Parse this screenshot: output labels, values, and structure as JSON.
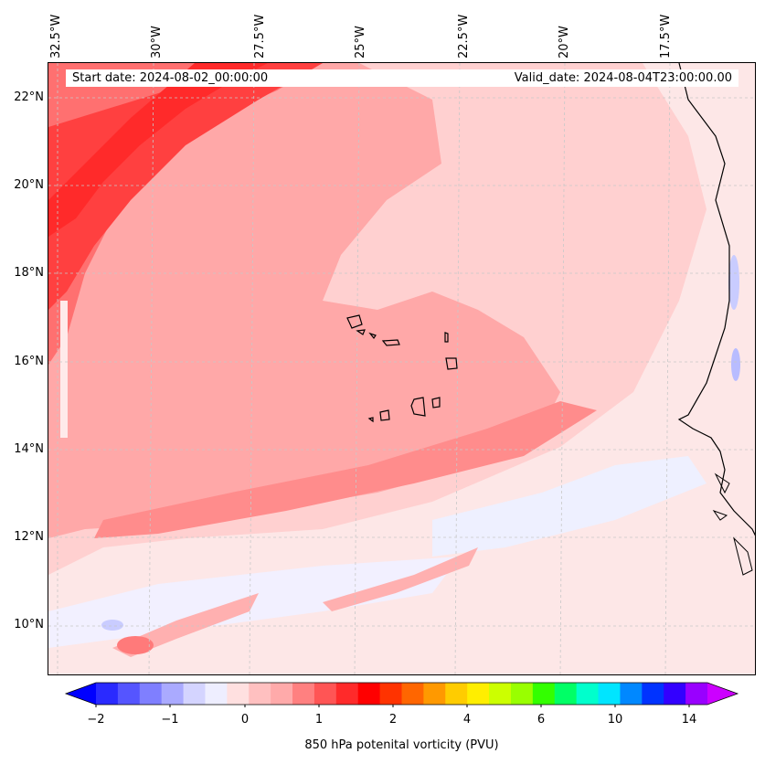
{
  "map": {
    "start_date": "Start date: 2024-08-02_00:00:00",
    "valid_date": "Valid_date: 2024-08-04T23:00:00.00",
    "lat_labels": [
      "22°N",
      "20°N",
      "18°N",
      "16°N",
      "14°N",
      "12°N",
      "10°N"
    ],
    "lon_labels": [
      "32.5°W",
      "30°W",
      "27.5°W",
      "25°W",
      "22.5°W",
      "20°W",
      "17.5°W"
    ],
    "field": "850 hPa potential vorticity",
    "domain_lat": [
      9,
      22.7
    ],
    "domain_lon": [
      -32.5,
      -15
    ]
  },
  "colorbar": {
    "title": "850 hPa potenital vorticity (PVU)",
    "tick_labels": [
      "−2",
      "−1",
      "0",
      "1",
      "2",
      "4",
      "6",
      "10",
      "14"
    ],
    "colors": [
      "#0000ff",
      "#2a2aff",
      "#5555ff",
      "#7f7fff",
      "#aaaaff",
      "#d4d4ff",
      "#eeeeff",
      "#ffe0e0",
      "#ffc0c0",
      "#ffaaaa",
      "#ff8080",
      "#ff5555",
      "#ff2a2a",
      "#ff0000",
      "#ff3300",
      "#ff6600",
      "#ff9900",
      "#ffcc00",
      "#ffee00",
      "#ccff00",
      "#99ff00",
      "#33ff00",
      "#00ff66",
      "#00ffcc",
      "#00e5ff",
      "#0088ff",
      "#0033ff",
      "#3300ff",
      "#9900ff",
      "#cc00ff"
    ]
  }
}
